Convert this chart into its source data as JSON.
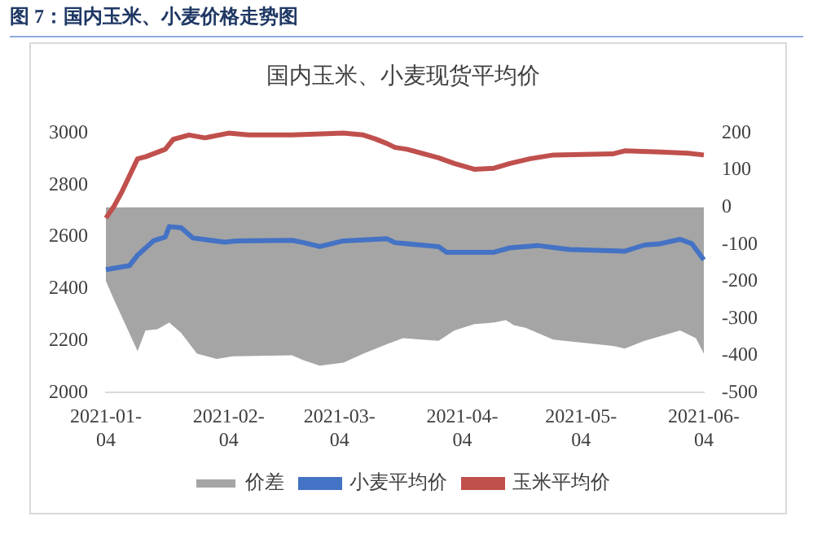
{
  "chart_data": {
    "type": "line",
    "title": "图 7：国内玉米、小麦价格走势图",
    "subtitle": "国内玉米、小麦现货平均价",
    "xlim": [
      "2021-01-04",
      "2021-06-04"
    ],
    "xticks": [
      "2021-01-04",
      "2021-02-04",
      "2021-03-04",
      "2021-04-04",
      "2021-05-04",
      "2021-06-04"
    ],
    "ylim": [
      2000,
      3000
    ],
    "yticks": [
      2000,
      2200,
      2400,
      2600,
      2800,
      3000
    ],
    "y2lim": [
      -500,
      200
    ],
    "y2ticks": [
      -500,
      -400,
      -300,
      -200,
      -100,
      0,
      100,
      200
    ],
    "grid": false,
    "legend": "bottom",
    "marker": "none",
    "series": [
      {
        "name": "价差",
        "type": "area",
        "axis": "y2",
        "color": "#a5a5a5",
        "x": [
          "2021-01-04",
          "2021-01-06",
          "2021-01-09",
          "2021-01-12",
          "2021-01-14",
          "2021-01-17",
          "2021-01-20",
          "2021-01-23",
          "2021-01-27",
          "2021-02-01",
          "2021-02-05",
          "2021-02-20",
          "2021-02-23",
          "2021-02-27",
          "2021-03-05",
          "2021-03-10",
          "2021-03-16",
          "2021-03-20",
          "2021-03-29",
          "2021-04-02",
          "2021-04-07",
          "2021-04-12",
          "2021-04-15",
          "2021-04-17",
          "2021-04-20",
          "2021-04-27",
          "2021-05-12",
          "2021-05-15",
          "2021-05-20",
          "2021-05-29",
          "2021-06-02",
          "2021-06-04"
        ],
        "values": [
          -199,
          -248,
          -318,
          -388,
          -332,
          -329,
          -311,
          -339,
          -395,
          -409,
          -402,
          -399,
          -413,
          -427,
          -419,
          -395,
          -369,
          -353,
          -360,
          -332,
          -315,
          -311,
          -304,
          -318,
          -325,
          -357,
          -374,
          -381,
          -360,
          -332,
          -353,
          -395
        ]
      },
      {
        "name": "小麦平均价",
        "color": "#4472c4",
        "x": [
          "2021-01-04",
          "2021-01-10",
          "2021-01-12",
          "2021-01-16",
          "2021-01-19",
          "2021-01-20",
          "2021-01-23",
          "2021-01-26",
          "2021-02-03",
          "2021-02-06",
          "2021-02-20",
          "2021-02-23",
          "2021-02-27",
          "2021-03-05",
          "2021-03-16",
          "2021-03-18",
          "2021-03-29",
          "2021-03-31",
          "2021-04-12",
          "2021-04-16",
          "2021-04-23",
          "2021-05-01",
          "2021-05-15",
          "2021-05-20",
          "2021-05-24",
          "2021-05-29",
          "2021-06-01",
          "2021-06-04"
        ],
        "values": [
          2474,
          2490,
          2530,
          2585,
          2600,
          2640,
          2636,
          2596,
          2580,
          2585,
          2587,
          2578,
          2563,
          2585,
          2593,
          2578,
          2563,
          2541,
          2541,
          2558,
          2567,
          2552,
          2545,
          2569,
          2574,
          2591,
          2574,
          2512
        ]
      },
      {
        "name": "玉米平均价",
        "color": "#c0504d",
        "x": [
          "2021-01-04",
          "2021-01-06",
          "2021-01-08",
          "2021-01-12",
          "2021-01-14",
          "2021-01-19",
          "2021-01-21",
          "2021-01-25",
          "2021-01-29",
          "2021-02-04",
          "2021-02-09",
          "2021-02-20",
          "2021-03-05",
          "2021-03-10",
          "2021-03-13",
          "2021-03-16",
          "2021-03-18",
          "2021-03-21",
          "2021-03-29",
          "2021-04-02",
          "2021-04-07",
          "2021-04-12",
          "2021-04-16",
          "2021-04-21",
          "2021-04-27",
          "2021-05-12",
          "2021-05-15",
          "2021-05-24",
          "2021-05-31",
          "2021-06-04"
        ],
        "values": [
          2673,
          2717,
          2773,
          2901,
          2909,
          2938,
          2976,
          2993,
          2982,
          3000,
          2993,
          2993,
          3000,
          2993,
          2978,
          2960,
          2945,
          2938,
          2905,
          2883,
          2861,
          2865,
          2883,
          2901,
          2916,
          2920,
          2932,
          2927,
          2923,
          2916
        ]
      }
    ]
  }
}
